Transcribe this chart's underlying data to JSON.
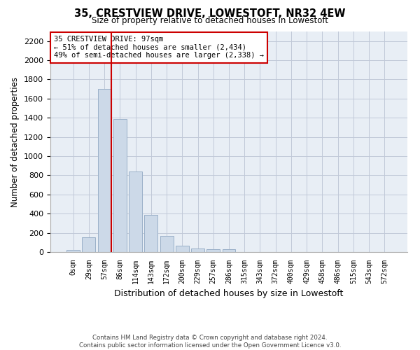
{
  "title": "35, CRESTVIEW DRIVE, LOWESTOFT, NR32 4EW",
  "subtitle": "Size of property relative to detached houses in Lowestoft",
  "xlabel": "Distribution of detached houses by size in Lowestoft",
  "ylabel": "Number of detached properties",
  "bar_categories": [
    "0sqm",
    "29sqm",
    "57sqm",
    "86sqm",
    "114sqm",
    "143sqm",
    "172sqm",
    "200sqm",
    "229sqm",
    "257sqm",
    "286sqm",
    "315sqm",
    "343sqm",
    "372sqm",
    "400sqm",
    "429sqm",
    "458sqm",
    "486sqm",
    "515sqm",
    "543sqm",
    "572sqm"
  ],
  "bar_values": [
    20,
    155,
    1700,
    1390,
    840,
    385,
    165,
    65,
    38,
    28,
    28,
    0,
    0,
    0,
    0,
    0,
    0,
    0,
    0,
    0,
    0
  ],
  "bar_color": "#ccd9e8",
  "bar_edge_color": "#9ab0c8",
  "ylim": [
    0,
    2300
  ],
  "yticks": [
    0,
    200,
    400,
    600,
    800,
    1000,
    1200,
    1400,
    1600,
    1800,
    2000,
    2200
  ],
  "vline_bin": 2,
  "annotation_title": "35 CRESTVIEW DRIVE: 97sqm",
  "annotation_line1": "← 51% of detached houses are smaller (2,434)",
  "annotation_line2": "49% of semi-detached houses are larger (2,338) →",
  "vline_color": "#cc0000",
  "annotation_box_color": "#ffffff",
  "annotation_box_edge": "#cc0000",
  "grid_color": "#c0c8d8",
  "background_color": "#e8eef5",
  "footer_line1": "Contains HM Land Registry data © Crown copyright and database right 2024.",
  "footer_line2": "Contains public sector information licensed under the Open Government Licence v3.0."
}
